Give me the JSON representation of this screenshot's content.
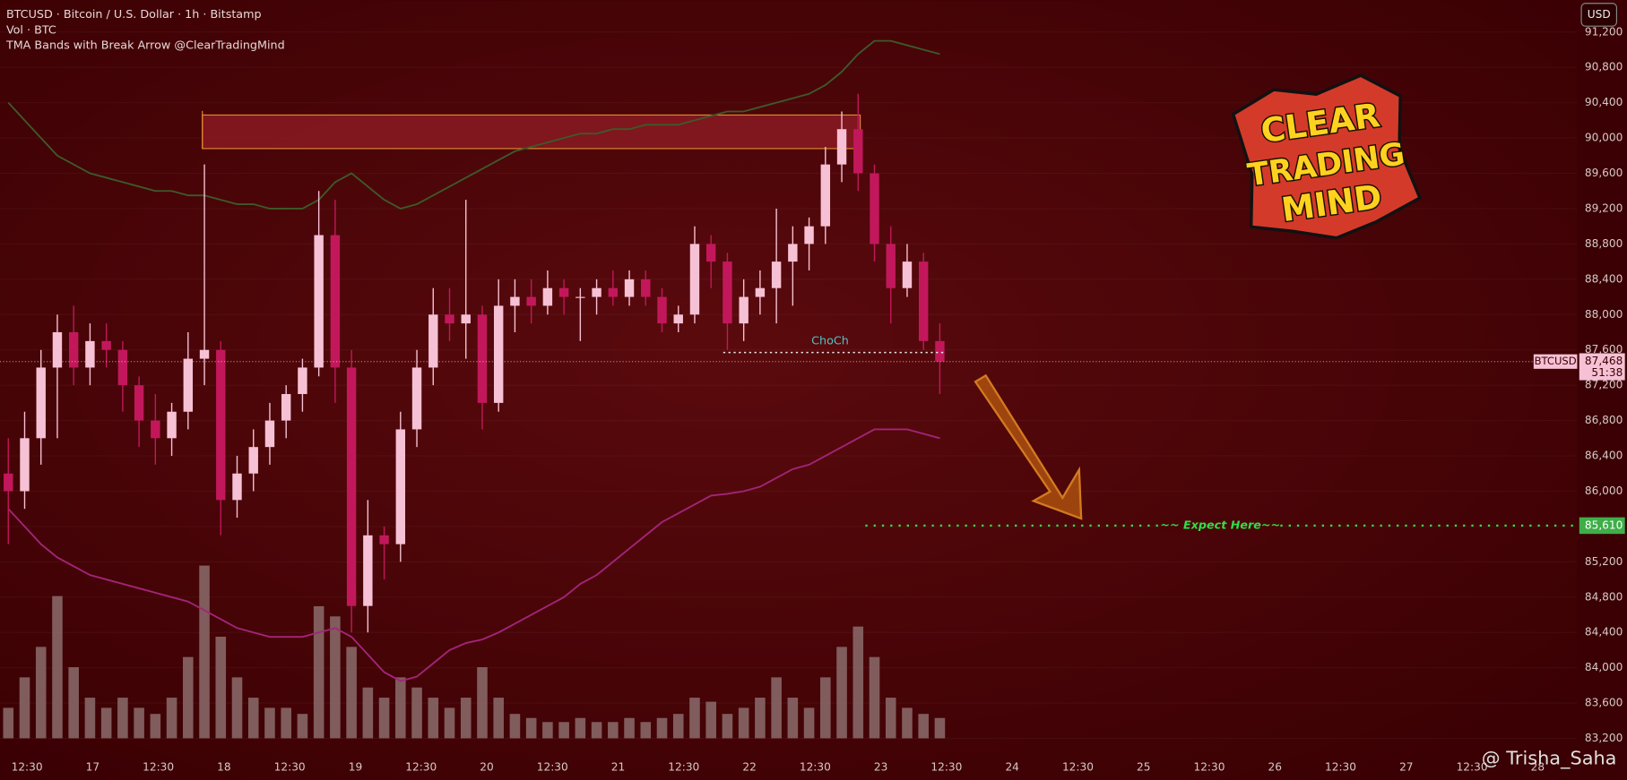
{
  "chart_data": {
    "type": "candlestick",
    "header": [
      "BTCUSD · Bitcoin / U.S. Dollar · 1h · Bitstamp",
      "Vol · BTC",
      "TMA Bands with Break Arrow @ClearTradingMind"
    ],
    "currency_button": "USD",
    "symbol": "BTCUSD",
    "up_color": "#f6c1d4",
    "down_color": "#c2185b",
    "volume_color": "#8c6c6c",
    "open": [
      86200,
      86000,
      86600,
      87400,
      87800,
      87400,
      87700,
      87600,
      87200,
      86800,
      86600,
      86900,
      87500,
      87600,
      85900,
      86200,
      86500,
      86800,
      87100,
      87400,
      88900,
      87400,
      84700,
      85500,
      85400,
      86700,
      87400,
      88000,
      87900,
      88000,
      87000,
      88100,
      88200,
      88100,
      88300,
      88200,
      88200,
      88300,
      88200,
      88400,
      88200,
      87900,
      88000,
      88800,
      88600,
      87900,
      88200,
      88300,
      88600,
      88800,
      89000,
      89700,
      90100,
      89600,
      88800,
      88300,
      88600,
      87700
    ],
    "high": [
      86600,
      86900,
      87600,
      88000,
      88100,
      87900,
      87900,
      87700,
      87300,
      87100,
      87000,
      87800,
      89700,
      87700,
      86400,
      86700,
      87000,
      87200,
      87500,
      89400,
      89300,
      87600,
      85900,
      85600,
      86900,
      87600,
      88300,
      88300,
      89300,
      88100,
      88400,
      88400,
      88400,
      88500,
      88400,
      88300,
      88400,
      88500,
      88500,
      88500,
      88300,
      88100,
      89000,
      88900,
      88700,
      88400,
      88500,
      89200,
      89000,
      89100,
      89900,
      90300,
      90500,
      89700,
      89000,
      88800,
      88700,
      87900
    ],
    "low": [
      85400,
      85800,
      86300,
      86600,
      87200,
      87200,
      87400,
      86900,
      86500,
      86300,
      86400,
      86700,
      87200,
      85500,
      85700,
      86000,
      86300,
      86600,
      86900,
      87300,
      87000,
      84400,
      84400,
      85000,
      85200,
      86500,
      87200,
      87700,
      87500,
      86700,
      86900,
      87800,
      87900,
      88000,
      88000,
      87700,
      88000,
      88100,
      88100,
      88100,
      87800,
      87800,
      87900,
      88300,
      87600,
      87700,
      88000,
      87900,
      88100,
      88500,
      88800,
      89500,
      89400,
      88600,
      87900,
      88200,
      87600,
      87100
    ],
    "close": [
      86000,
      86600,
      87400,
      87800,
      87400,
      87700,
      87600,
      87200,
      86800,
      86600,
      86900,
      87500,
      87600,
      85900,
      86200,
      86500,
      86800,
      87100,
      87400,
      88900,
      87400,
      84700,
      85500,
      85400,
      86700,
      87400,
      88000,
      87900,
      88000,
      87000,
      88100,
      88200,
      88100,
      88300,
      88200,
      88200,
      88300,
      88200,
      88400,
      88200,
      87900,
      88000,
      88800,
      88600,
      87900,
      88200,
      88300,
      88600,
      88800,
      89000,
      89700,
      90100,
      89600,
      88800,
      88300,
      88600,
      87700,
      87468
    ],
    "volume": [
      15,
      30,
      45,
      70,
      35,
      20,
      15,
      20,
      15,
      12,
      20,
      40,
      85,
      50,
      30,
      20,
      15,
      15,
      12,
      65,
      60,
      45,
      25,
      20,
      30,
      25,
      20,
      15,
      20,
      35,
      20,
      12,
      10,
      8,
      8,
      10,
      8,
      8,
      10,
      8,
      10,
      12,
      20,
      18,
      12,
      15,
      20,
      30,
      20,
      15,
      30,
      45,
      55,
      40,
      20,
      15,
      12,
      10
    ],
    "volume_lim": [
      0,
      100
    ],
    "bands": [
      {
        "color": "#3d5a2a",
        "values": [
          90400,
          90200,
          90000,
          89800,
          89700,
          89600,
          89550,
          89500,
          89450,
          89400,
          89400,
          89350,
          89350,
          89300,
          89250,
          89250,
          89200,
          89200,
          89200,
          89300,
          89500,
          89600,
          89450,
          89300,
          89200,
          89250,
          89350,
          89450,
          89550,
          89650,
          89750,
          89850,
          89900,
          89950,
          90000,
          90050,
          90050,
          90100,
          90100,
          90150,
          90150,
          90150,
          90200,
          90250,
          90300,
          90300,
          90350,
          90400,
          90450,
          90500,
          90600,
          90750,
          90950,
          91100,
          91100,
          91050,
          91000,
          90950
        ]
      },
      {
        "color": "#a3257a",
        "values": [
          85800,
          85600,
          85400,
          85250,
          85150,
          85050,
          85000,
          84950,
          84900,
          84850,
          84800,
          84750,
          84650,
          84550,
          84450,
          84400,
          84350,
          84350,
          84350,
          84400,
          84450,
          84350,
          84150,
          83950,
          83850,
          83900,
          84050,
          84200,
          84280,
          84320,
          84400,
          84500,
          84600,
          84700,
          84800,
          84950,
          85050,
          85200,
          85350,
          85500,
          85650,
          85750,
          85850,
          85950,
          85970,
          86000,
          86050,
          86150,
          86250,
          86300,
          86400,
          86500,
          86600,
          86700,
          86700,
          86700,
          86650,
          86600
        ]
      }
    ],
    "zone": {
      "top": 90260,
      "bottom": 89880,
      "color": "#8a1a22",
      "border": "#e08a30"
    },
    "choch": {
      "label": "ChoCh",
      "level": 87570,
      "color": "#4fc3c3"
    },
    "last_price": {
      "value": 87468,
      "label": "87,468"
    },
    "countdown": "51:38",
    "target": {
      "value": 85610,
      "label": "85,610",
      "text": "~~ Expect Here~~",
      "color": "#2ee04a"
    },
    "ylim": [
      82990,
      91560
    ],
    "yticks": [
      {
        "value": 83200,
        "label": "83,200"
      },
      {
        "value": 83600,
        "label": "83,600"
      },
      {
        "value": 84000,
        "label": "84,000"
      },
      {
        "value": 84400,
        "label": "84,400"
      },
      {
        "value": 84800,
        "label": "84,800"
      },
      {
        "value": 85200,
        "label": "85,200"
      },
      {
        "value": 85600,
        "label": "85,600"
      },
      {
        "value": 86000,
        "label": "86,000"
      },
      {
        "value": 86400,
        "label": "86,400"
      },
      {
        "value": 86800,
        "label": "86,800"
      },
      {
        "value": 87200,
        "label": "87,200"
      },
      {
        "value": 87600,
        "label": "87,600"
      },
      {
        "value": 88000,
        "label": "88,000"
      },
      {
        "value": 88400,
        "label": "88,400"
      },
      {
        "value": 88800,
        "label": "88,800"
      },
      {
        "value": 89200,
        "label": "89,200"
      },
      {
        "value": 89600,
        "label": "89,600"
      },
      {
        "value": 90000,
        "label": "90,000"
      },
      {
        "value": 90400,
        "label": "90,400"
      },
      {
        "value": 90800,
        "label": "90,800"
      },
      {
        "value": 91200,
        "label": "91,200"
      }
    ],
    "xaxis_labels": [
      "12:30",
      "17",
      "12:30",
      "18",
      "12:30",
      "19",
      "12:30",
      "20",
      "12:30",
      "21",
      "12:30",
      "22",
      "12:30",
      "23",
      "12:30",
      "24",
      "12:30",
      "25",
      "12:30",
      "26",
      "12:30",
      "27",
      "12:30",
      "28"
    ],
    "logo": [
      "CLEAR",
      "TRADING",
      "MIND"
    ],
    "watermark": "@ Trisha_Saha"
  }
}
